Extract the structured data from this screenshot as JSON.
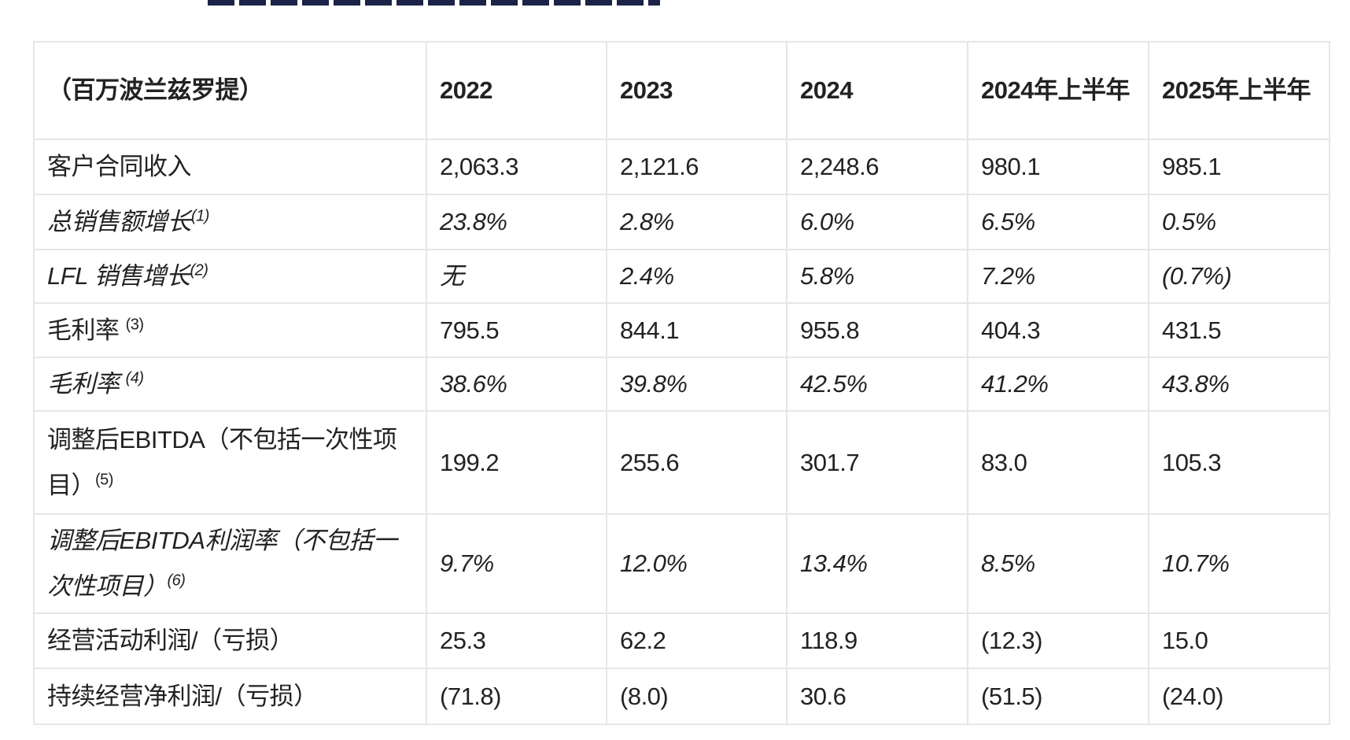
{
  "table": {
    "headers": [
      "（百万波兰兹罗提）",
      "2022",
      "2023",
      "2024",
      "2024年上半年",
      "2025年上半年"
    ],
    "rows": [
      {
        "label": "客户合同收入",
        "note": "",
        "italic": false,
        "values": [
          "2,063.3",
          "2,121.6",
          "2,248.6",
          "980.1",
          "985.1"
        ]
      },
      {
        "label": "总销售额增长",
        "note": "(1)",
        "italic": true,
        "values": [
          "23.8%",
          "2.8%",
          "6.0%",
          "6.5%",
          "0.5%"
        ]
      },
      {
        "label": "LFL 销售增长",
        "note": "(2)",
        "italic": true,
        "values": [
          "无",
          "2.4%",
          "5.8%",
          "7.2%",
          "(0.7%)"
        ]
      },
      {
        "label": "毛利率 ",
        "note": "(3)",
        "italic": false,
        "values": [
          "795.5",
          "844.1",
          "955.8",
          "404.3",
          "431.5"
        ]
      },
      {
        "label": "毛利率 ",
        "note": "(4)",
        "italic": true,
        "values": [
          "38.6%",
          "39.8%",
          "42.5%",
          "41.2%",
          "43.8%"
        ]
      },
      {
        "label": "调整后EBITDA（不包括一次性项目）",
        "note": "(5)",
        "italic": false,
        "values": [
          "199.2",
          "255.6",
          "301.7",
          "83.0",
          "105.3"
        ]
      },
      {
        "label": "调整后EBITDA利润率（不包括一次性项目）",
        "note": "(6)",
        "italic": true,
        "values": [
          "9.7%",
          "12.0%",
          "13.4%",
          "8.5%",
          "10.7%"
        ]
      },
      {
        "label": "经营活动利润/（亏损）",
        "note": "",
        "italic": false,
        "values": [
          "25.3",
          "62.2",
          "118.9",
          "(12.3)",
          "15.0"
        ]
      },
      {
        "label": "持续经营净利润/（亏损）",
        "note": "",
        "italic": false,
        "values": [
          "(71.8)",
          "(8.0)",
          "30.6",
          "(51.5)",
          "(24.0)"
        ]
      }
    ]
  }
}
